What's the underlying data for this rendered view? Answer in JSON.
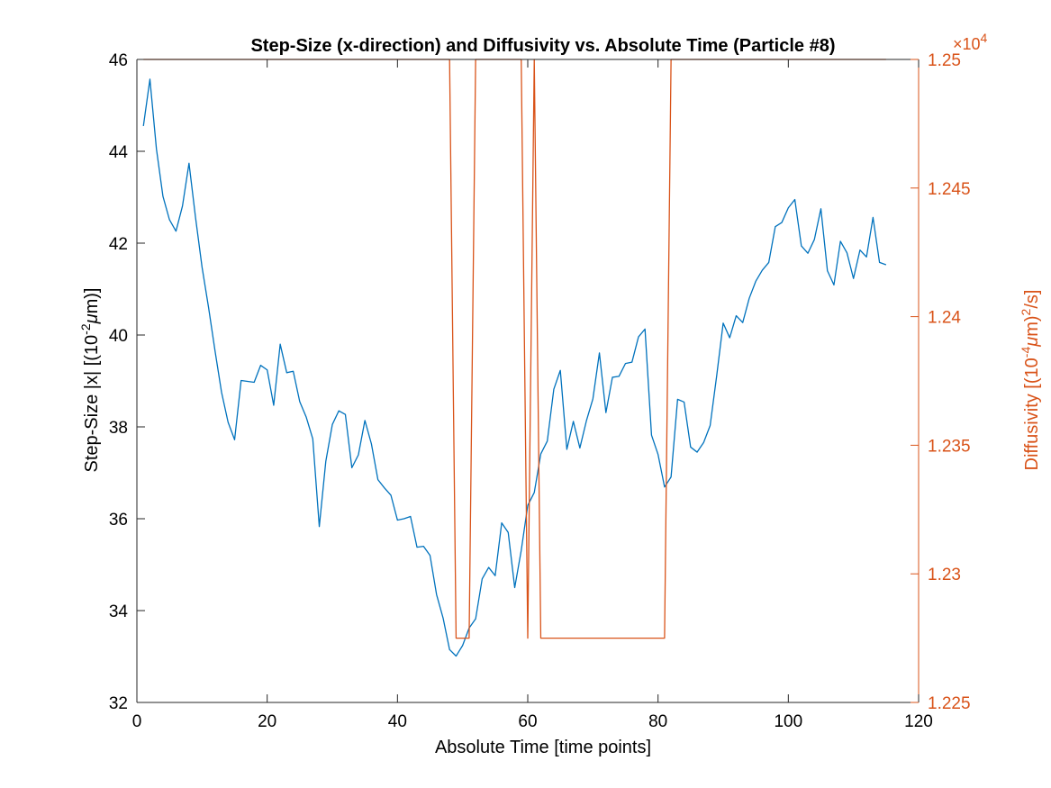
{
  "chart_data": {
    "type": "line",
    "title": "Step-Size (x-direction) and Diffusivity vs. Absolute Time (Particle #8)",
    "xlabel": "Absolute Time [time points]",
    "ylabel_left": {
      "prefix": "Step-Size |x| [(10",
      "sup": "-2",
      "mid": "",
      "mu": "μ",
      "suffix": "m)]"
    },
    "ylabel_right": {
      "prefix": "Diffusivity [(10",
      "sup": "-4",
      "mu": "μ",
      "mid": "m)",
      "sup2": "2",
      "suffix": "/s]"
    },
    "right_multiplier": {
      "base": "×10",
      "exp": "4"
    },
    "xlim": [
      0,
      120
    ],
    "ylim_left": [
      32,
      46
    ],
    "ylim_right": [
      1.225,
      1.25
    ],
    "right_scale_display": 10000,
    "xticks": [
      0,
      20,
      40,
      60,
      80,
      100,
      120
    ],
    "xtick_labels": [
      "0",
      "20",
      "40",
      "60",
      "80",
      "100",
      "120"
    ],
    "yticks_left": [
      32,
      34,
      36,
      38,
      40,
      42,
      44,
      46
    ],
    "ytick_labels_left": [
      "32",
      "34",
      "36",
      "38",
      "40",
      "42",
      "44",
      "46"
    ],
    "yticks_right": [
      1.225,
      1.23,
      1.235,
      1.24,
      1.245,
      1.25
    ],
    "ytick_labels_right": [
      "1.225",
      "1.23",
      "1.235",
      "1.24",
      "1.245",
      "1.25"
    ],
    "grid": false,
    "colors": {
      "step_size": "#0072BD",
      "diffusivity": "#D95319",
      "axis": "#262626"
    },
    "series": [
      {
        "axis": "left",
        "x": [
          1,
          2,
          3,
          4,
          5,
          6,
          7,
          8,
          9,
          10,
          11,
          12,
          13,
          14,
          15,
          16,
          17,
          18,
          19,
          20,
          21,
          22,
          23,
          24,
          25,
          26,
          27,
          28,
          29,
          30,
          31,
          32,
          33,
          34,
          35,
          36,
          37,
          38,
          39,
          40,
          41,
          42,
          43,
          44,
          45,
          46,
          47,
          48,
          49,
          50,
          51,
          52,
          53,
          54,
          55,
          56,
          57,
          58,
          59,
          60,
          61,
          62,
          63,
          64,
          65,
          66,
          67,
          68,
          69,
          70,
          71,
          72,
          73,
          74,
          75,
          76,
          77,
          78,
          79,
          80,
          81,
          82,
          83,
          84,
          85,
          86,
          87,
          88,
          89,
          90,
          91,
          92,
          93,
          94,
          95,
          96,
          97,
          98,
          99,
          100,
          101,
          102,
          103,
          104,
          105,
          106,
          107,
          108,
          109,
          110,
          111,
          112,
          113,
          114,
          115
        ],
        "values": [
          44.55,
          45.57,
          44.05,
          43.02,
          42.51,
          42.26,
          42.81,
          43.74,
          42.56,
          41.48,
          40.6,
          39.65,
          38.75,
          38.1,
          37.72,
          39.01,
          38.99,
          38.97,
          39.34,
          39.24,
          38.47,
          39.8,
          39.18,
          39.21,
          38.55,
          38.21,
          37.74,
          35.83,
          37.25,
          38.05,
          38.35,
          38.27,
          37.11,
          37.39,
          38.14,
          37.63,
          36.85,
          36.67,
          36.51,
          35.97,
          36.0,
          36.05,
          35.38,
          35.4,
          35.2,
          34.35,
          33.84,
          33.15,
          33.01,
          33.24,
          33.62,
          33.82,
          34.69,
          34.94,
          34.76,
          35.91,
          35.7,
          34.5,
          35.31,
          36.29,
          36.57,
          37.41,
          37.69,
          38.82,
          39.23,
          37.51,
          38.12,
          37.54,
          38.13,
          38.61,
          39.61,
          38.31,
          39.08,
          39.1,
          39.38,
          39.41,
          39.96,
          40.13,
          37.82,
          37.4,
          36.69,
          36.91,
          38.6,
          38.54,
          37.56,
          37.45,
          37.66,
          38.03,
          39.11,
          40.26,
          39.94,
          40.42,
          40.27,
          40.8,
          41.17,
          41.41,
          41.58,
          42.36,
          42.45,
          42.77,
          42.95,
          41.94,
          41.78,
          42.08,
          42.75,
          41.4,
          41.09,
          42.04,
          41.79,
          41.23,
          41.85,
          41.7,
          42.56,
          41.58,
          41.53
        ]
      },
      {
        "axis": "right",
        "x": [
          1,
          48,
          49,
          51,
          52,
          59,
          60,
          61,
          62,
          81,
          82,
          115
        ],
        "values": [
          1.25,
          1.25,
          1.2275,
          1.2275,
          1.25,
          1.25,
          1.2275,
          1.25,
          1.2275,
          1.2275,
          1.25,
          1.25
        ]
      }
    ]
  }
}
